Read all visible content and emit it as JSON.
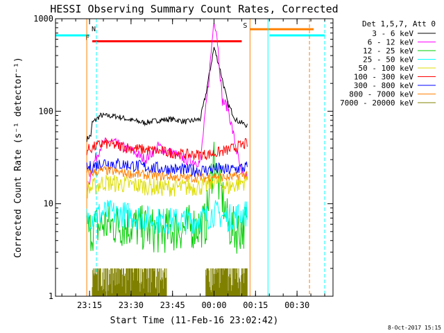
{
  "chart_data": {
    "type": "line",
    "title": "HESSI Observing Summary Count Rates, Corrected",
    "xlabel": "Start Time (11-Feb-16 23:02:42)",
    "ylabel": "Corrected Count Rate (s⁻¹ detector⁻¹)",
    "yscale": "log",
    "ylim": [
      1,
      1000
    ],
    "xlim": [
      "23:02:42",
      "00:43:00"
    ],
    "x_ticks": [
      "23:15",
      "23:30",
      "23:45",
      "00:00",
      "00:15",
      "00:30"
    ],
    "y_ticks": [
      "1",
      "10",
      "100",
      "1000"
    ],
    "timestamp": "8-Oct-2017 15:15",
    "legend": {
      "placement": "right-outside",
      "header": "Det 1,5,7, Att 0"
    },
    "series": [
      {
        "name": "3 - 6 keV",
        "color": "#000000",
        "points": [
          [
            "23:14:00",
            50
          ],
          [
            "23:15:30",
            55
          ],
          [
            "23:16:00",
            75
          ],
          [
            "23:19:00",
            90
          ],
          [
            "23:25:00",
            88
          ],
          [
            "23:30:00",
            80
          ],
          [
            "23:35:00",
            75
          ],
          [
            "23:40:00",
            80
          ],
          [
            "23:45:00",
            82
          ],
          [
            "23:50:00",
            77
          ],
          [
            "23:55:00",
            82
          ],
          [
            "23:57:00",
            150
          ],
          [
            "23:59:00",
            330
          ],
          [
            "24:00:00",
            490
          ],
          [
            "24:02:00",
            300
          ],
          [
            "24:05:00",
            120
          ],
          [
            "24:08:00",
            80
          ],
          [
            "24:12:00",
            70
          ]
        ]
      },
      {
        "name": "6 - 12 keV",
        "color": "#ff00ff",
        "points": [
          [
            "23:14:00",
            13
          ],
          [
            "23:16:00",
            25
          ],
          [
            "23:19:00",
            42
          ],
          [
            "23:22:00",
            48
          ],
          [
            "23:26:00",
            42
          ],
          [
            "23:30:00",
            38
          ],
          [
            "23:35:00",
            30
          ],
          [
            "23:40:00",
            42
          ],
          [
            "23:42:00",
            38
          ],
          [
            "23:45:00",
            35
          ],
          [
            "23:50:00",
            30
          ],
          [
            "23:55:00",
            28
          ],
          [
            "23:58:00",
            200
          ],
          [
            "24:00:00",
            1000
          ],
          [
            "24:01:00",
            700
          ],
          [
            "24:03:00",
            130
          ],
          [
            "24:05:00",
            110
          ],
          [
            "24:08:00",
            40
          ],
          [
            "24:10:00",
            20
          ],
          [
            "24:12:00",
            20
          ]
        ]
      },
      {
        "name": "12 - 25 keV",
        "color": "#00cc00",
        "points": [
          [
            "23:14:00",
            5
          ],
          [
            "23:20:00",
            6
          ],
          [
            "23:30:00",
            5.8
          ],
          [
            "23:40:00",
            5
          ],
          [
            "23:50:00",
            5.5
          ],
          [
            "23:57:00",
            6
          ],
          [
            "24:00:00",
            35
          ],
          [
            "24:01:00",
            20
          ],
          [
            "24:03:00",
            12
          ],
          [
            "24:05:00",
            6
          ],
          [
            "24:08:00",
            5
          ],
          [
            "24:12:00",
            6
          ]
        ]
      },
      {
        "name": "25 - 50 keV",
        "color": "#00ffff",
        "points": [
          [
            "23:14:00",
            7
          ],
          [
            "23:20:00",
            8
          ],
          [
            "23:30:00",
            7.5
          ],
          [
            "23:40:00",
            6.5
          ],
          [
            "23:50:00",
            6.5
          ],
          [
            "23:57:00",
            7
          ],
          [
            "24:00:00",
            8
          ],
          [
            "24:05:00",
            7
          ],
          [
            "24:12:00",
            8
          ]
        ]
      },
      {
        "name": "50 - 100 keV",
        "color": "#dddd00",
        "points": [
          [
            "23:14:00",
            14
          ],
          [
            "23:20:00",
            17
          ],
          [
            "23:30:00",
            16
          ],
          [
            "23:40:00",
            15
          ],
          [
            "23:50:00",
            15
          ],
          [
            "23:57:00",
            15.5
          ],
          [
            "24:00:00",
            18
          ],
          [
            "24:05:00",
            15
          ],
          [
            "24:12:00",
            18
          ]
        ]
      },
      {
        "name": "100 - 300 keV",
        "color": "#ff0000",
        "points": [
          [
            "23:14:00",
            38
          ],
          [
            "23:20:00",
            45
          ],
          [
            "23:30:00",
            40
          ],
          [
            "23:40:00",
            37
          ],
          [
            "23:50:00",
            34
          ],
          [
            "23:57:00",
            34
          ],
          [
            "24:00:00",
            35
          ],
          [
            "24:05:00",
            38
          ],
          [
            "24:12:00",
            45
          ]
        ]
      },
      {
        "name": "300 - 800 keV",
        "color": "#0000ff",
        "points": [
          [
            "23:14:00",
            24
          ],
          [
            "23:20:00",
            28
          ],
          [
            "23:30:00",
            26
          ],
          [
            "23:40:00",
            24
          ],
          [
            "23:50:00",
            23
          ],
          [
            "23:57:00",
            23
          ],
          [
            "24:00:00",
            24
          ],
          [
            "24:05:00",
            23
          ],
          [
            "24:12:00",
            25
          ]
        ]
      },
      {
        "name": "800 - 7000 keV",
        "color": "#ff8000",
        "points": [
          [
            "23:14:00",
            21
          ],
          [
            "23:20:00",
            23
          ],
          [
            "23:30:00",
            21
          ],
          [
            "23:40:00",
            20
          ],
          [
            "23:50:00",
            19
          ],
          [
            "23:57:00",
            19
          ],
          [
            "24:00:00",
            20
          ],
          [
            "24:05:00",
            19
          ],
          [
            "24:12:00",
            21
          ]
        ]
      },
      {
        "name": "7000 - 20000 keV",
        "color": "#808000",
        "points": [
          [
            "23:14:00",
            1.5
          ],
          [
            "24:12:00",
            1.5
          ]
        ]
      }
    ],
    "flag_bars": [
      {
        "label": "N",
        "color": "#00ffff",
        "segments": [
          [
            "23:02:42",
            "23:15:00"
          ],
          [
            "00:20:00",
            "00:40:00"
          ]
        ],
        "level": 660
      },
      {
        "label": "F",
        "color": "#ff0000",
        "segments": [
          [
            "23:16:00",
            "00:10:00"
          ]
        ],
        "level": 570
      },
      {
        "label": "S",
        "color": "#ff8000",
        "segments": [
          [
            "00:13:00",
            "00:36:00"
          ]
        ],
        "level": 770
      }
    ],
    "vlines": [
      {
        "time": "23:02:42",
        "color": "#00ffff",
        "style": "solid"
      },
      {
        "time": "23:14:00",
        "color": "#ff8000",
        "style": "solid"
      },
      {
        "time": "23:17:30",
        "color": "#00ffff",
        "style": "dashed"
      },
      {
        "time": "00:13:00",
        "color": "#ff8000",
        "style": "solid"
      },
      {
        "time": "00:19:30",
        "color": "#00ffff",
        "style": "solid"
      },
      {
        "time": "00:34:30",
        "color": "#ff8000",
        "style": "dashed"
      },
      {
        "time": "00:40:00",
        "color": "#00ffff",
        "style": "dashed"
      }
    ]
  }
}
